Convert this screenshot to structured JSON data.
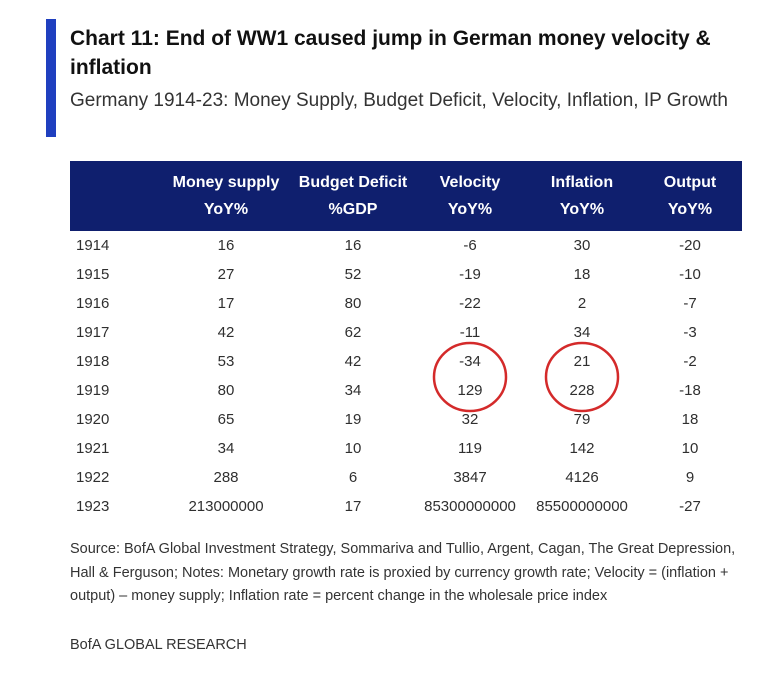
{
  "title": "Chart 11: End of WW1 caused jump in German money velocity & inflation",
  "subtitle": "Germany 1914-23: Money Supply, Budget Deficit, Velocity, Inflation, IP Growth",
  "colors": {
    "accent": "#1f3fbf",
    "header_bg": "#0f1f6e",
    "circle": "#d42a2a"
  },
  "chart_data": {
    "type": "table",
    "columns": [
      {
        "line1": "",
        "line2": ""
      },
      {
        "line1": "Money supply",
        "line2": "YoY%"
      },
      {
        "line1": "Budget Deficit",
        "line2": "%GDP"
      },
      {
        "line1": "Velocity",
        "line2": "YoY%"
      },
      {
        "line1": "Inflation",
        "line2": "YoY%"
      },
      {
        "line1": "Output",
        "line2": "YoY%"
      }
    ],
    "rows": [
      [
        "1914",
        "16",
        "16",
        "-6",
        "30",
        "-20"
      ],
      [
        "1915",
        "27",
        "52",
        "-19",
        "18",
        "-10"
      ],
      [
        "1916",
        "17",
        "80",
        "-22",
        "2",
        "-7"
      ],
      [
        "1917",
        "42",
        "62",
        "-11",
        "34",
        "-3"
      ],
      [
        "1918",
        "53",
        "42",
        "-34",
        "21",
        "-2"
      ],
      [
        "1919",
        "80",
        "34",
        "129",
        "228",
        "-18"
      ],
      [
        "1920",
        "65",
        "19",
        "32",
        "79",
        "18"
      ],
      [
        "1921",
        "34",
        "10",
        "119",
        "142",
        "10"
      ],
      [
        "1922",
        "288",
        "6",
        "3847",
        "4126",
        "9"
      ],
      [
        "1923",
        "213000000",
        "17",
        "85300000000",
        "85500000000",
        "-27"
      ]
    ],
    "highlights": [
      {
        "column": "Velocity",
        "years": [
          "1918",
          "1919"
        ]
      },
      {
        "column": "Inflation",
        "years": [
          "1918",
          "1919"
        ]
      }
    ]
  },
  "source": "Source: BofA Global Investment Strategy, Sommariva and Tullio, Argent, Cagan, The Great Depression, Hall & Ferguson; Notes: Monetary growth rate is proxied by currency growth rate; Velocity = (inflation + output) – money supply; Inflation rate = percent change in the wholesale price index",
  "brand": "BofA GLOBAL RESEARCH"
}
